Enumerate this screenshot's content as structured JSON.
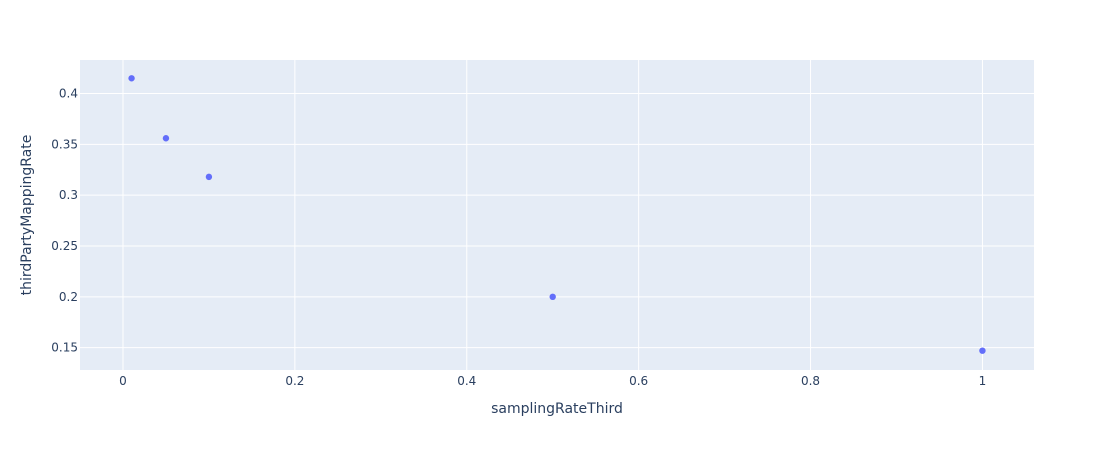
{
  "chart_data": {
    "type": "scatter",
    "title": "",
    "xlabel": "samplingRateThird",
    "ylabel": "thirdPartyMappingRate",
    "x": [
      0.01,
      0.05,
      0.1,
      0.5,
      1
    ],
    "y": [
      0.415,
      0.356,
      0.318,
      0.2,
      0.147
    ],
    "xlim": [
      -0.05,
      1.06
    ],
    "ylim": [
      0.128,
      0.433
    ],
    "xticks": [
      0,
      0.2,
      0.4,
      0.6,
      0.8,
      1
    ],
    "xtick_labels": [
      "0",
      "0.2",
      "0.4",
      "0.6",
      "0.8",
      "1"
    ],
    "yticks": [
      0.15,
      0.2,
      0.25,
      0.3,
      0.35,
      0.4
    ],
    "ytick_labels": [
      "0.15",
      "0.2",
      "0.25",
      "0.3",
      "0.35",
      "0.4"
    ],
    "grid": true,
    "legend": "none",
    "colors": {
      "plot_background": "#e5ecf6",
      "grid": "#ffffff",
      "marker": "#636efa",
      "text": "#2a3f5f"
    }
  }
}
